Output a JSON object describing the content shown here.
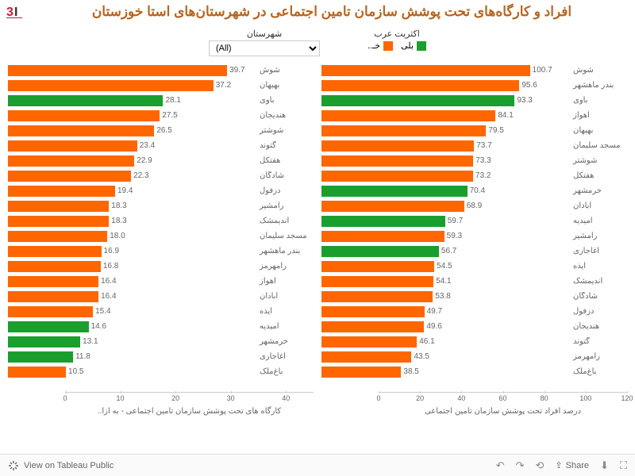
{
  "title": "افراد و کارگاه‌های تحت پوشش سازمان تامین اجتماعی در شهرستان‌های استا خوزستان",
  "logo_text": "3I",
  "controls": {
    "dropdown_label": "شهرستان",
    "dropdown_value": "(All)",
    "legend_label": "اکثریت عرب",
    "legend_yes": "بلی",
    "legend_no": "خـ..",
    "color_yes": "#1a9e2e",
    "color_no": "#ff6600"
  },
  "chart_right": {
    "x_label": "درصد افراد تحت پوشش سازمان تامين اجتماعی",
    "xlim": [
      0,
      120
    ],
    "xticks": [
      0,
      20,
      40,
      60,
      80,
      100,
      120
    ],
    "bars": [
      {
        "label": "شوش",
        "value": 100.7,
        "color": "#ff6600"
      },
      {
        "label": "بندر ماهشهر",
        "value": 95.6,
        "color": "#ff6600"
      },
      {
        "label": "باوی",
        "value": 93.3,
        "color": "#1a9e2e"
      },
      {
        "label": "اهواز",
        "value": 84.1,
        "color": "#ff6600"
      },
      {
        "label": "بهبهان",
        "value": 79.5,
        "color": "#ff6600"
      },
      {
        "label": "مسجد سلیمان",
        "value": 73.7,
        "color": "#ff6600"
      },
      {
        "label": "شوشتر",
        "value": 73.3,
        "color": "#ff6600"
      },
      {
        "label": "هفتکل",
        "value": 73.2,
        "color": "#ff6600"
      },
      {
        "label": "خرمشهر",
        "value": 70.4,
        "color": "#1a9e2e"
      },
      {
        "label": "آبادان",
        "value": 68.9,
        "color": "#ff6600"
      },
      {
        "label": "امیدیه",
        "value": 59.7,
        "color": "#1a9e2e"
      },
      {
        "label": "رامشیر",
        "value": 59.3,
        "color": "#ff6600"
      },
      {
        "label": "آغاجاری",
        "value": 56.7,
        "color": "#1a9e2e"
      },
      {
        "label": "ایذه",
        "value": 54.5,
        "color": "#ff6600"
      },
      {
        "label": "اندیمشک",
        "value": 54.1,
        "color": "#ff6600"
      },
      {
        "label": "شادگان",
        "value": 53.8,
        "color": "#ff6600"
      },
      {
        "label": "دزفول",
        "value": 49.7,
        "color": "#ff6600"
      },
      {
        "label": "هندیجان",
        "value": 49.6,
        "color": "#ff6600"
      },
      {
        "label": "گتوند",
        "value": 46.1,
        "color": "#ff6600"
      },
      {
        "label": "رامهرمز",
        "value": 43.5,
        "color": "#ff6600"
      },
      {
        "label": "باغ‌ملک",
        "value": 38.5,
        "color": "#ff6600"
      }
    ]
  },
  "chart_left": {
    "x_label": "کارگاه های تحت پوشش سازمان تامین اجتماعی - به ازا..",
    "xlim": [
      0,
      45
    ],
    "xticks": [
      0,
      10,
      20,
      30,
      40
    ],
    "bars": [
      {
        "label": "شوش",
        "value": 39.7,
        "color": "#ff6600"
      },
      {
        "label": "بهبهان",
        "value": 37.2,
        "color": "#ff6600"
      },
      {
        "label": "باوی",
        "value": 28.1,
        "color": "#1a9e2e"
      },
      {
        "label": "هندیجان",
        "value": 27.5,
        "color": "#ff6600"
      },
      {
        "label": "شوشتر",
        "value": 26.5,
        "color": "#ff6600"
      },
      {
        "label": "گتوند",
        "value": 23.4,
        "color": "#ff6600"
      },
      {
        "label": "هفتکل",
        "value": 22.9,
        "color": "#ff6600"
      },
      {
        "label": "شادگان",
        "value": 22.3,
        "color": "#ff6600"
      },
      {
        "label": "دزفول",
        "value": 19.4,
        "color": "#ff6600"
      },
      {
        "label": "رامشیر",
        "value": 18.3,
        "color": "#ff6600"
      },
      {
        "label": "اندیمشک",
        "value": 18.3,
        "color": "#ff6600"
      },
      {
        "label": "مسجد سلیمان",
        "value": 18.0,
        "color": "#ff6600"
      },
      {
        "label": "بندر ماهشهر",
        "value": 16.9,
        "color": "#ff6600"
      },
      {
        "label": "رامهرمز",
        "value": 16.8,
        "color": "#ff6600"
      },
      {
        "label": "اهواز",
        "value": 16.4,
        "color": "#ff6600"
      },
      {
        "label": "آبادان",
        "value": 16.4,
        "color": "#ff6600"
      },
      {
        "label": "ایذه",
        "value": 15.4,
        "color": "#ff6600"
      },
      {
        "label": "امیدیه",
        "value": 14.6,
        "color": "#1a9e2e"
      },
      {
        "label": "خرمشهر",
        "value": 13.1,
        "color": "#1a9e2e"
      },
      {
        "label": "آغاجاری",
        "value": 11.8,
        "color": "#1a9e2e"
      },
      {
        "label": "باغ‌ملک",
        "value": 10.5,
        "color": "#ff6600"
      }
    ]
  },
  "footer": {
    "view_text": "View on Tableau Public",
    "share_text": "Share"
  }
}
